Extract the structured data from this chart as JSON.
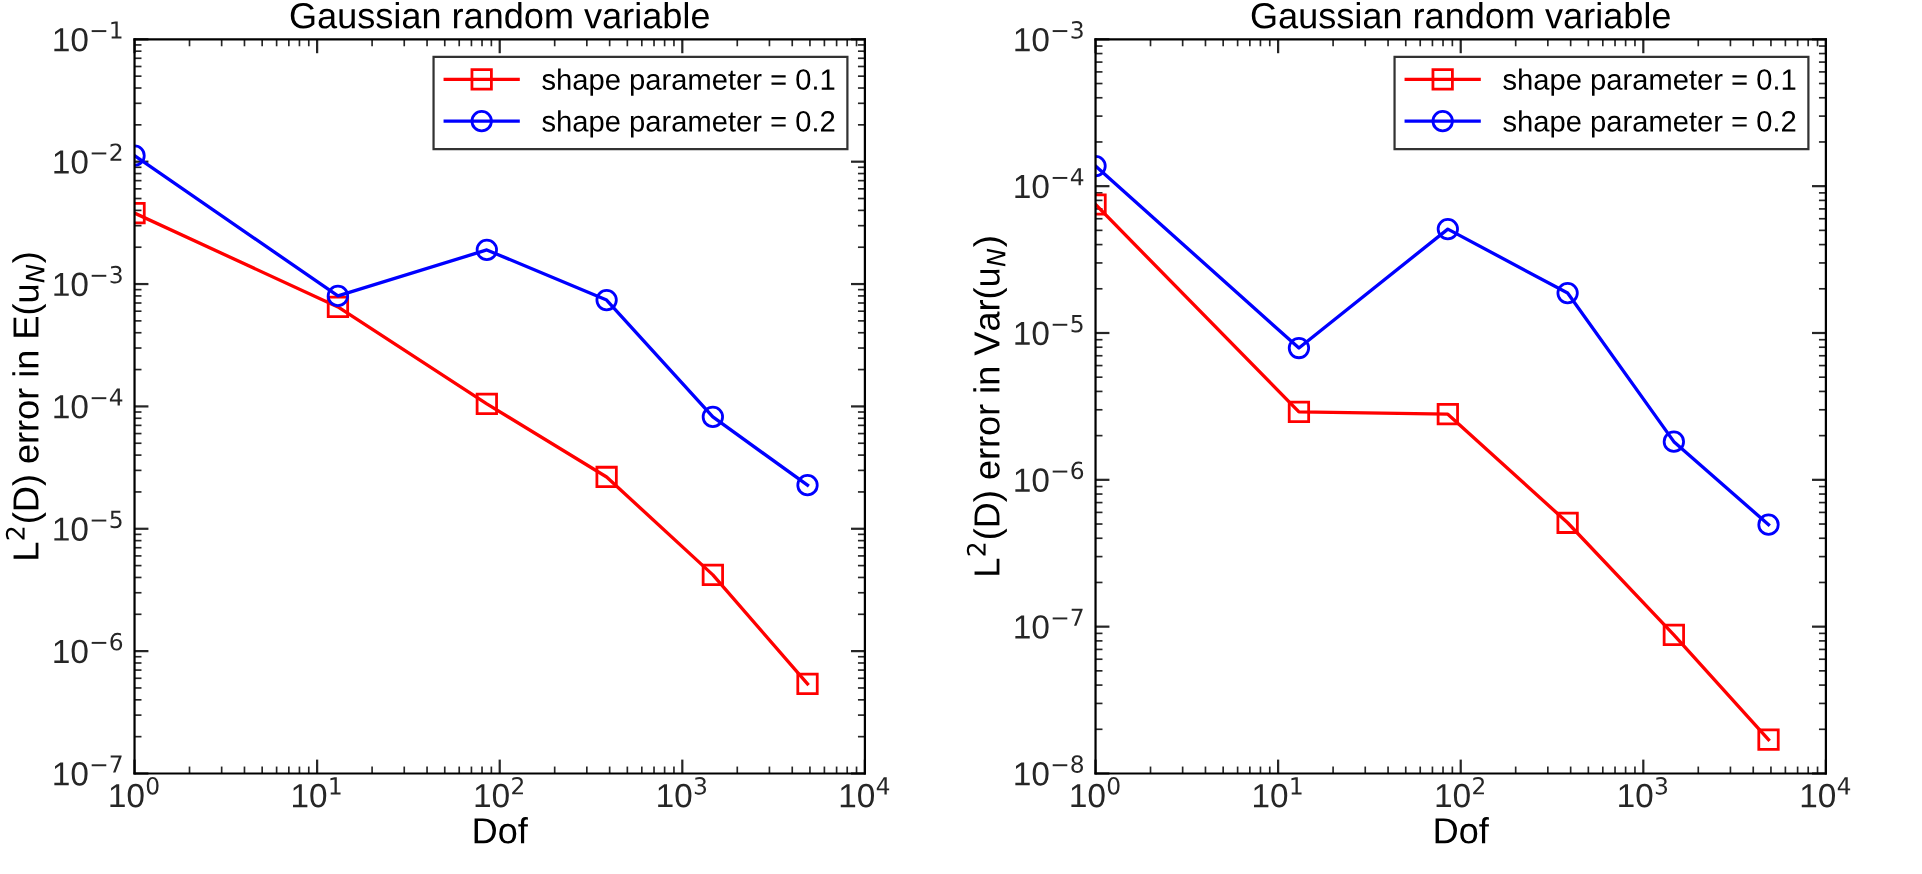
{
  "chart_data": [
    {
      "type": "line",
      "title": "Gaussian random variable",
      "xlabel": "Dof",
      "ylabel": "L$^{2}$(D) error in E(u$_{N}$)",
      "log": "xy",
      "legend": "top right",
      "grid": false,
      "line_style": "solid",
      "x": [
        1,
        13,
        85,
        385,
        1470,
        4850
      ],
      "xlim": [
        1,
        10000
      ],
      "xticks": [
        {
          "value": 1,
          "label": "10$^{0}$"
        },
        {
          "value": 10,
          "label": "10$^{1}$"
        },
        {
          "value": 100,
          "label": "10$^{2}$"
        },
        {
          "value": 1000,
          "label": "10$^{3}$"
        },
        {
          "value": 10000,
          "label": "10$^{4}$"
        }
      ],
      "ylim": [
        1e-07,
        0.1
      ],
      "yticks": [
        {
          "value": 1e-07,
          "label": "10$^{−7}$"
        },
        {
          "value": 1e-06,
          "label": "10$^{−6}$"
        },
        {
          "value": 1e-05,
          "label": "10$^{−5}$"
        },
        {
          "value": 0.0001,
          "label": "10$^{−4}$"
        },
        {
          "value": 0.001,
          "label": "10$^{−3}$"
        },
        {
          "value": 0.01,
          "label": "10$^{−2}$"
        },
        {
          "value": 0.1,
          "label": "10$^{−1}$"
        }
      ],
      "series": [
        {
          "name": "shape parameter = 0.1",
          "color": "#ff0000",
          "marker": "square",
          "values": [
            0.0038,
            0.00065,
            0.000105,
            2.65e-05,
            4.2e-06,
            5.4e-07
          ]
        },
        {
          "name": "shape parameter = 0.2",
          "color": "#0000ff",
          "marker": "circle",
          "values": [
            0.0112,
            0.0008,
            0.0019,
            0.00074,
            8.2e-05,
            2.27e-05
          ]
        }
      ]
    },
    {
      "type": "line",
      "title": "Gaussian random variable",
      "xlabel": "Dof",
      "ylabel": "L$^{2}$(D) error in Var(u$_{N}$)",
      "log": "xy",
      "legend": "top right",
      "grid": false,
      "line_style": "solid",
      "x": [
        1,
        13,
        85,
        385,
        1470,
        4850
      ],
      "xlim": [
        1,
        10000
      ],
      "xticks": [
        {
          "value": 1,
          "label": "10$^{0}$"
        },
        {
          "value": 10,
          "label": "10$^{1}$"
        },
        {
          "value": 100,
          "label": "10$^{2}$"
        },
        {
          "value": 1000,
          "label": "10$^{3}$"
        },
        {
          "value": 10000,
          "label": "10$^{4}$"
        }
      ],
      "ylim": [
        1e-08,
        0.001
      ],
      "yticks": [
        {
          "value": 1e-08,
          "label": "10$^{−8}$"
        },
        {
          "value": 1e-07,
          "label": "10$^{−7}$"
        },
        {
          "value": 1e-06,
          "label": "10$^{−6}$"
        },
        {
          "value": 1e-05,
          "label": "10$^{−5}$"
        },
        {
          "value": 0.0001,
          "label": "10$^{−4}$"
        },
        {
          "value": 0.001,
          "label": "10$^{−3}$"
        }
      ],
      "series": [
        {
          "name": "shape parameter = 0.1",
          "color": "#ff0000",
          "marker": "square",
          "values": [
            7.5e-05,
            2.9e-06,
            2.8e-06,
            5.1e-07,
            8.8e-08,
            1.7e-08
          ]
        },
        {
          "name": "shape parameter = 0.2",
          "color": "#0000ff",
          "marker": "circle",
          "values": [
            0.000137,
            7.9e-06,
            5.1e-05,
            1.87e-05,
            1.82e-06,
            4.95e-07
          ]
        }
      ]
    }
  ]
}
